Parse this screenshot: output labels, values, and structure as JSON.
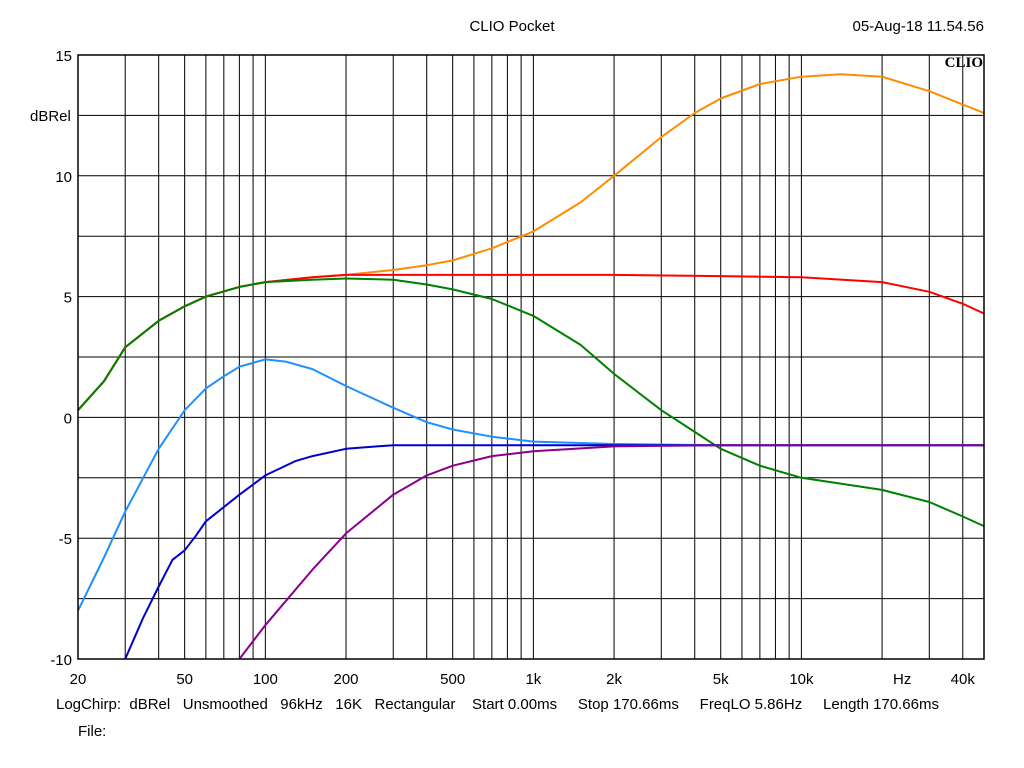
{
  "header": {
    "title": "CLIO Pocket",
    "timestamp": "05-Aug-18 11.54.56",
    "brand": "CLIO"
  },
  "footer": {
    "info": "LogChirp:  dBRel   Unsmoothed   96kHz   16K   Rectangular    Start 0.00ms     Stop 170.66ms     FreqLO 5.86Hz     Length 170.66ms",
    "file_label": "File:"
  },
  "chart_data": {
    "type": "line",
    "xscale": "log",
    "xlim": [
      20,
      48000
    ],
    "ylim": [
      -10,
      15
    ],
    "grid": true,
    "ylabel": "dBRel",
    "xunit": "Hz",
    "x_tick_labels": [
      {
        "value": 20,
        "label": "20"
      },
      {
        "value": 50,
        "label": "50"
      },
      {
        "value": 100,
        "label": "100"
      },
      {
        "value": 200,
        "label": "200"
      },
      {
        "value": 500,
        "label": "500"
      },
      {
        "value": 1000,
        "label": "1k"
      },
      {
        "value": 2000,
        "label": "2k"
      },
      {
        "value": 5000,
        "label": "5k"
      },
      {
        "value": 10000,
        "label": "10k"
      },
      {
        "value": 40000,
        "label": "40k"
      }
    ],
    "y_tick_labels": [
      {
        "value": 15,
        "label": "15"
      },
      {
        "value": 10,
        "label": "10"
      },
      {
        "value": 5,
        "label": "5"
      },
      {
        "value": 0,
        "label": "0"
      },
      {
        "value": -5,
        "label": "-5"
      },
      {
        "value": -10,
        "label": "-10"
      }
    ],
    "series": [
      {
        "color": "#ff8c00",
        "points": [
          [
            20,
            0.3
          ],
          [
            25,
            1.5
          ],
          [
            30,
            2.9
          ],
          [
            40,
            4.0
          ],
          [
            50,
            4.6
          ],
          [
            60,
            5.0
          ],
          [
            80,
            5.4
          ],
          [
            100,
            5.6
          ],
          [
            150,
            5.8
          ],
          [
            200,
            5.9
          ],
          [
            300,
            6.1
          ],
          [
            400,
            6.3
          ],
          [
            500,
            6.5
          ],
          [
            700,
            7.0
          ],
          [
            1000,
            7.7
          ],
          [
            1500,
            8.9
          ],
          [
            2000,
            10.0
          ],
          [
            3000,
            11.6
          ],
          [
            4000,
            12.6
          ],
          [
            5000,
            13.2
          ],
          [
            7000,
            13.8
          ],
          [
            10000,
            14.1
          ],
          [
            14000,
            14.2
          ],
          [
            20000,
            14.1
          ],
          [
            30000,
            13.5
          ],
          [
            48000,
            12.6
          ]
        ]
      },
      {
        "color": "#ff0000",
        "points": [
          [
            20,
            0.3
          ],
          [
            25,
            1.5
          ],
          [
            30,
            2.9
          ],
          [
            40,
            4.0
          ],
          [
            50,
            4.6
          ],
          [
            60,
            5.0
          ],
          [
            80,
            5.4
          ],
          [
            100,
            5.6
          ],
          [
            150,
            5.8
          ],
          [
            200,
            5.9
          ],
          [
            300,
            5.9
          ],
          [
            500,
            5.9
          ],
          [
            1000,
            5.9
          ],
          [
            2000,
            5.9
          ],
          [
            5000,
            5.85
          ],
          [
            10000,
            5.8
          ],
          [
            20000,
            5.6
          ],
          [
            30000,
            5.2
          ],
          [
            40000,
            4.7
          ],
          [
            48000,
            4.3
          ]
        ]
      },
      {
        "color": "#008000",
        "points": [
          [
            20,
            0.3
          ],
          [
            25,
            1.5
          ],
          [
            30,
            2.9
          ],
          [
            40,
            4.0
          ],
          [
            50,
            4.6
          ],
          [
            60,
            5.0
          ],
          [
            80,
            5.4
          ],
          [
            100,
            5.6
          ],
          [
            150,
            5.7
          ],
          [
            200,
            5.75
          ],
          [
            300,
            5.7
          ],
          [
            400,
            5.5
          ],
          [
            500,
            5.3
          ],
          [
            700,
            4.9
          ],
          [
            1000,
            4.2
          ],
          [
            1500,
            3.0
          ],
          [
            2000,
            1.8
          ],
          [
            3000,
            0.3
          ],
          [
            4000,
            -0.6
          ],
          [
            5000,
            -1.3
          ],
          [
            7000,
            -2.0
          ],
          [
            10000,
            -2.5
          ],
          [
            20000,
            -3.0
          ],
          [
            30000,
            -3.5
          ],
          [
            40000,
            -4.1
          ],
          [
            48000,
            -4.5
          ]
        ]
      },
      {
        "color": "#1e90ff",
        "points": [
          [
            20,
            -8.0
          ],
          [
            25,
            -5.8
          ],
          [
            30,
            -3.9
          ],
          [
            40,
            -1.3
          ],
          [
            50,
            0.3
          ],
          [
            60,
            1.2
          ],
          [
            70,
            1.7
          ],
          [
            80,
            2.1
          ],
          [
            100,
            2.4
          ],
          [
            120,
            2.3
          ],
          [
            150,
            2.0
          ],
          [
            200,
            1.3
          ],
          [
            300,
            0.4
          ],
          [
            400,
            -0.2
          ],
          [
            500,
            -0.5
          ],
          [
            700,
            -0.8
          ],
          [
            1000,
            -1.0
          ],
          [
            2000,
            -1.1
          ],
          [
            5000,
            -1.15
          ],
          [
            10000,
            -1.15
          ],
          [
            48000,
            -1.15
          ]
        ]
      },
      {
        "color": "#0000cd",
        "points": [
          [
            30,
            -10.0
          ],
          [
            35,
            -8.3
          ],
          [
            40,
            -7.0
          ],
          [
            45,
            -5.9
          ],
          [
            50,
            -5.5
          ],
          [
            55,
            -4.9
          ],
          [
            60,
            -4.3
          ],
          [
            80,
            -3.2
          ],
          [
            100,
            -2.4
          ],
          [
            130,
            -1.8
          ],
          [
            150,
            -1.6
          ],
          [
            200,
            -1.3
          ],
          [
            300,
            -1.15
          ],
          [
            500,
            -1.15
          ],
          [
            1000,
            -1.15
          ],
          [
            48000,
            -1.15
          ]
        ]
      },
      {
        "color": "#8b008b",
        "points": [
          [
            80,
            -10.0
          ],
          [
            100,
            -8.6
          ],
          [
            150,
            -6.3
          ],
          [
            200,
            -4.8
          ],
          [
            300,
            -3.2
          ],
          [
            400,
            -2.4
          ],
          [
            500,
            -2.0
          ],
          [
            700,
            -1.6
          ],
          [
            1000,
            -1.4
          ],
          [
            2000,
            -1.2
          ],
          [
            5000,
            -1.15
          ],
          [
            48000,
            -1.15
          ]
        ]
      }
    ]
  }
}
